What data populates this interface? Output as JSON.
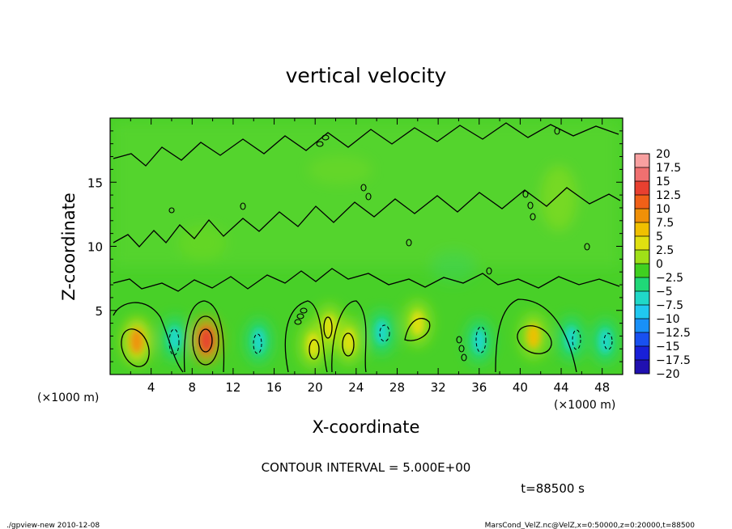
{
  "chart_data": {
    "type": "heatmap",
    "title": "vertical velocity",
    "xlabel": "X-coordinate",
    "ylabel": "Z-coordinate",
    "x_unit_left": "(×1000 m)",
    "x_unit_right": "(×1000 m)",
    "xlim": [
      0,
      50
    ],
    "ylim": [
      0,
      20
    ],
    "x_ticks": [
      4,
      8,
      12,
      16,
      20,
      24,
      28,
      32,
      36,
      40,
      44,
      48
    ],
    "y_ticks": [
      5,
      10,
      15
    ],
    "colorbar": {
      "levels": [
        "20",
        "17.5",
        "15",
        "12.5",
        "10",
        "7.5",
        "5",
        "2.5",
        "0",
        "−2.5",
        "−5",
        "−7.5",
        "−10",
        "−12.5",
        "−15",
        "−17.5",
        "−20"
      ],
      "colors": [
        "#f8a0a0",
        "#f07070",
        "#e84030",
        "#f06018",
        "#f09008",
        "#f0c000",
        "#e0e010",
        "#a0e018",
        "#40d020",
        "#20d878",
        "#20d8c8",
        "#20c8f0",
        "#1890f8",
        "#1850f0",
        "#1820d8",
        "#2010b0",
        "#7010b8"
      ]
    },
    "features": [
      {
        "x": 2.6,
        "z": 2.6,
        "value": 9
      },
      {
        "x": 6.3,
        "z": 2.8,
        "value": -6
      },
      {
        "x": 9.4,
        "z": 2.7,
        "value": 14
      },
      {
        "x": 14.5,
        "z": 2.6,
        "value": -5
      },
      {
        "x": 19.8,
        "z": 2.3,
        "value": 5
      },
      {
        "x": 21.4,
        "z": 3.7,
        "value": 4
      },
      {
        "x": 23.3,
        "z": 2.6,
        "value": 6
      },
      {
        "x": 26.5,
        "z": 3.3,
        "value": -4
      },
      {
        "x": 30.0,
        "z": 4.0,
        "value": 5
      },
      {
        "x": 36.0,
        "z": 2.6,
        "value": -6
      },
      {
        "x": 41.3,
        "z": 3.0,
        "value": 7
      },
      {
        "x": 45.0,
        "z": 2.8,
        "value": -5
      },
      {
        "x": 48.3,
        "z": 2.6,
        "value": -4
      }
    ],
    "annotations": {
      "contour_interval": "CONTOUR INTERVAL = 5.000E+00",
      "time": "t=88500 s",
      "footer_left": "./gpview-new 2010-12-08",
      "footer_right": "MarsCond_VelZ.nc@VelZ,x=0:50000,z=0:20000,t=88500"
    }
  }
}
